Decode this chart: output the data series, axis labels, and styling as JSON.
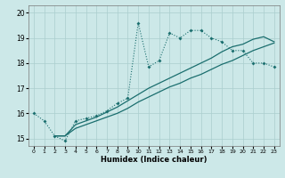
{
  "xlabel": "Humidex (Indice chaleur)",
  "bg_color": "#cce8e8",
  "grid_color": "#aacece",
  "line_color": "#1a6e6e",
  "xlim_min": -0.5,
  "xlim_max": 23.5,
  "ylim_min": 14.7,
  "ylim_max": 20.3,
  "yticks": [
    15,
    16,
    17,
    18,
    19,
    20
  ],
  "xticks": [
    0,
    1,
    2,
    3,
    4,
    5,
    6,
    7,
    8,
    9,
    10,
    11,
    12,
    13,
    14,
    15,
    16,
    17,
    18,
    19,
    20,
    21,
    22,
    23
  ],
  "line1_x": [
    0,
    1,
    2,
    3,
    4,
    5,
    6,
    7,
    8,
    9,
    10,
    11,
    12,
    13,
    14,
    15,
    16,
    17,
    18,
    19,
    20,
    21,
    22,
    23
  ],
  "line1_y": [
    16.0,
    15.7,
    15.1,
    14.9,
    15.7,
    15.8,
    15.9,
    16.1,
    16.4,
    16.6,
    19.6,
    17.85,
    18.1,
    19.2,
    19.0,
    19.3,
    19.3,
    19.0,
    18.85,
    18.5,
    18.5,
    18.0,
    18.0,
    17.85
  ],
  "line2_x": [
    2,
    3,
    4,
    5,
    6,
    7,
    8,
    9,
    10,
    11,
    12,
    13,
    14,
    15,
    16,
    17,
    18,
    19,
    20,
    21,
    22,
    23
  ],
  "line2_y": [
    15.1,
    15.1,
    15.4,
    15.55,
    15.7,
    15.85,
    16.0,
    16.2,
    16.45,
    16.65,
    16.85,
    17.05,
    17.2,
    17.4,
    17.55,
    17.75,
    17.95,
    18.1,
    18.3,
    18.5,
    18.65,
    18.8
  ],
  "line3_x": [
    2,
    3,
    4,
    5,
    6,
    7,
    8,
    9,
    10,
    11,
    12,
    13,
    14,
    15,
    16,
    17,
    18,
    19,
    20,
    21,
    22,
    23
  ],
  "line3_y": [
    15.1,
    15.1,
    15.55,
    15.7,
    15.85,
    16.05,
    16.25,
    16.5,
    16.75,
    17.0,
    17.2,
    17.4,
    17.6,
    17.8,
    18.0,
    18.2,
    18.45,
    18.65,
    18.75,
    18.95,
    19.05,
    18.85
  ]
}
